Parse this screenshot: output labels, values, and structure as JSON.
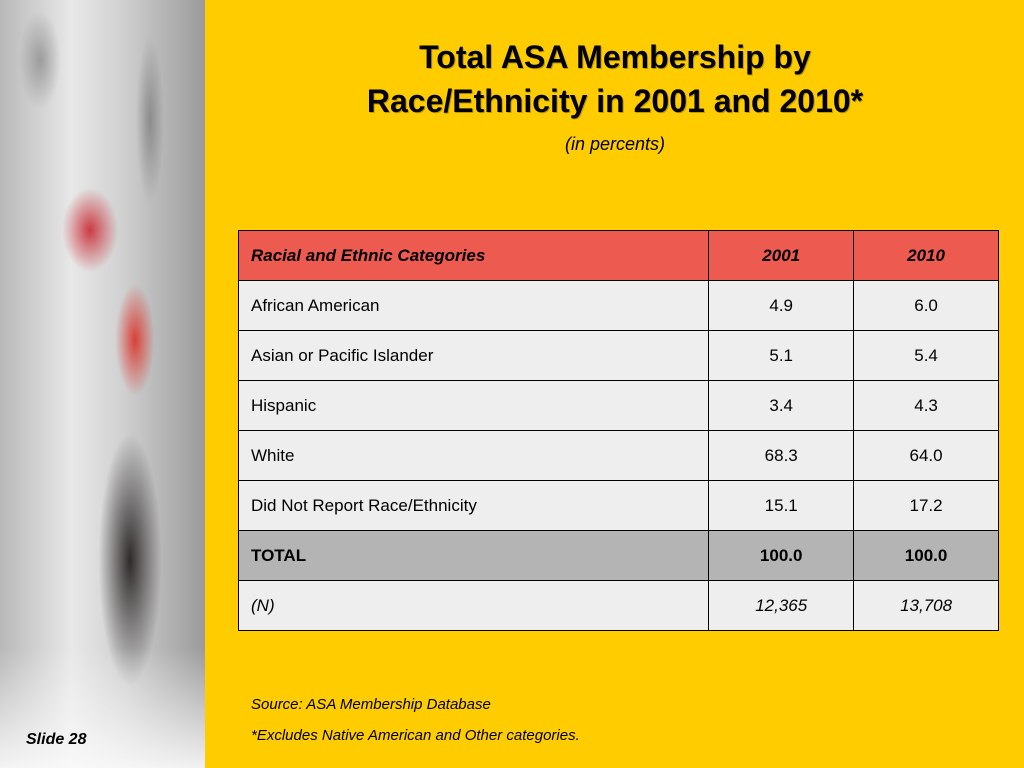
{
  "title_line1": "Total ASA Membership by",
  "title_line2": "Race/Ethnicity in 2001 and 2010*",
  "subtitle": "(in percents)",
  "table": {
    "headers": [
      "Racial and Ethnic Categories",
      "2001",
      "2010"
    ],
    "rows": [
      [
        "African American",
        "4.9",
        "6.0"
      ],
      [
        "Asian or Pacific Islander",
        "5.1",
        "5.4"
      ],
      [
        "Hispanic",
        "3.4",
        "4.3"
      ],
      [
        "White",
        "68.3",
        "64.0"
      ],
      [
        "Did Not Report Race/Ethnicity",
        "15.1",
        "17.2"
      ]
    ],
    "total": [
      "TOTAL",
      "100.0",
      "100.0"
    ],
    "n": [
      "(N)",
      "12,365",
      "13,708"
    ]
  },
  "source": "Source: ASA Membership Database",
  "footnote": "*Excludes Native American and Other categories.",
  "slide_label": "Slide 28",
  "colors": {
    "background": "#ffcc00",
    "header_fill": "#ec5a50",
    "total_fill": "#b4b4b4",
    "cell_fill": "#eeeeee"
  }
}
